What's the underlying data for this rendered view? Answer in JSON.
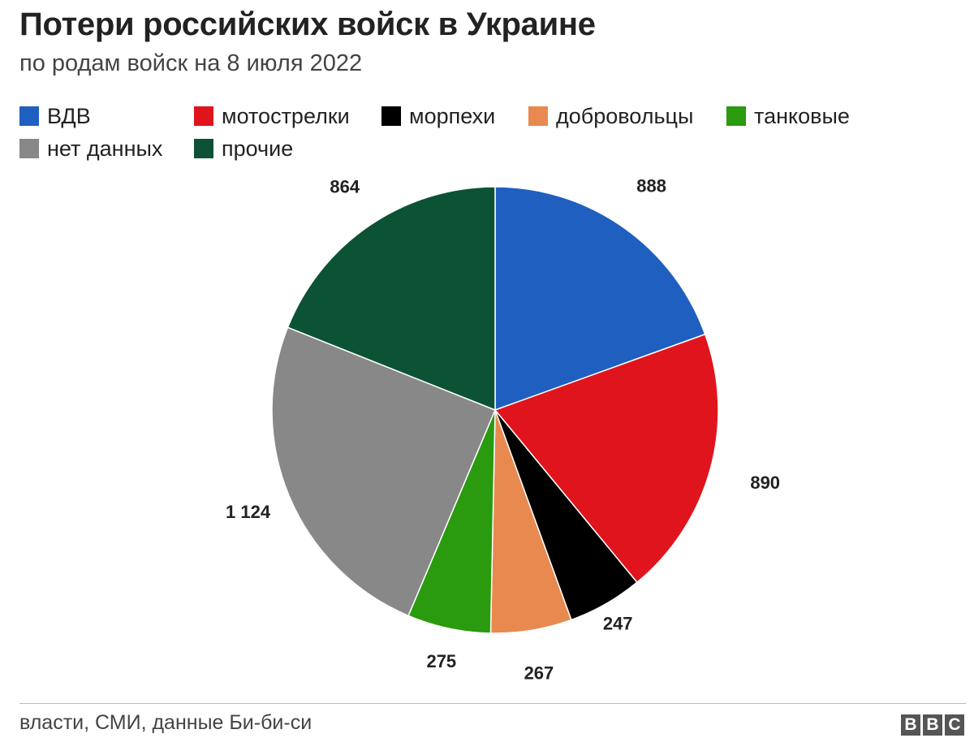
{
  "header": {
    "title": "Потери российских войск в Украине",
    "subtitle": "по родам войск на 8 июля 2022"
  },
  "chart_data": {
    "type": "pie",
    "start_angle_deg": 0,
    "direction": "clockwise",
    "legend_placement": "top",
    "slices": [
      {
        "label": "ВДВ",
        "value": 888,
        "display": "888",
        "color": "#1f5fbf"
      },
      {
        "label": "мотострелки",
        "value": 890,
        "display": "890",
        "color": "#e0141c"
      },
      {
        "label": "морпехи",
        "value": 247,
        "display": "247",
        "color": "#000000"
      },
      {
        "label": "добровольцы",
        "value": 267,
        "display": "267",
        "color": "#e8894f"
      },
      {
        "label": "танковые",
        "value": 275,
        "display": "275",
        "color": "#2a9a0f"
      },
      {
        "label": "нет данных",
        "value": 1124,
        "display": "1 124",
        "color": "#888888"
      },
      {
        "label": "прочие",
        "value": 864,
        "display": "864",
        "color": "#0c5234"
      }
    ]
  },
  "footer": {
    "source": "власти, СМИ, данные Би-би-си",
    "logo_letters": [
      "B",
      "B",
      "C"
    ]
  }
}
